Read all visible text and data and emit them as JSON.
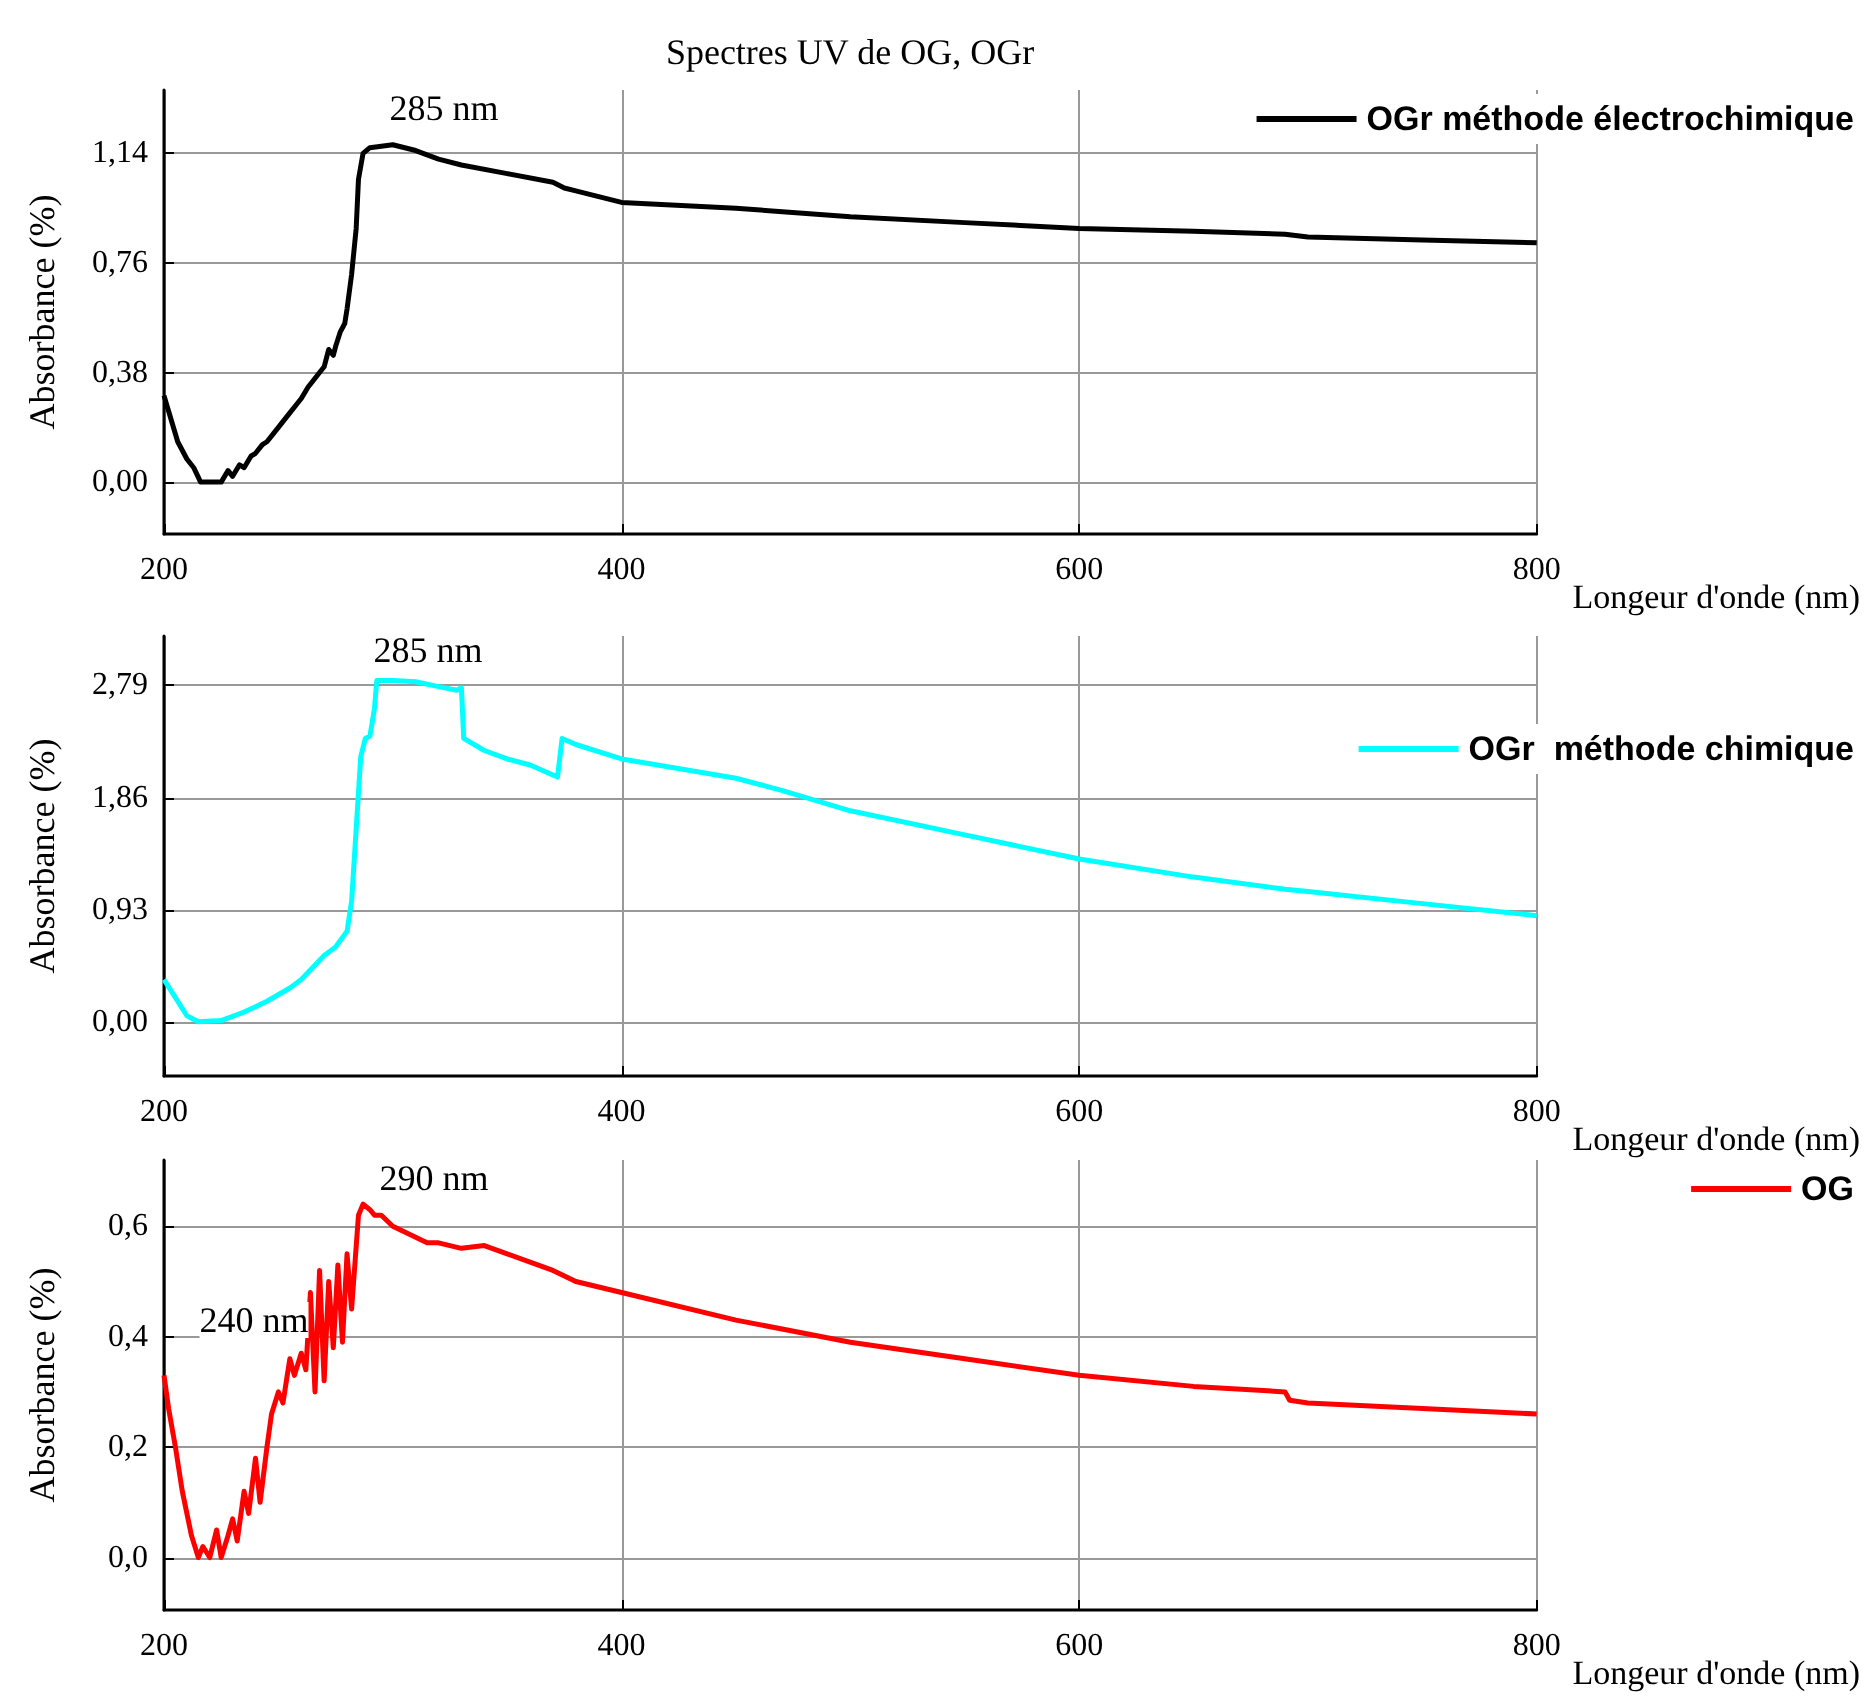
{
  "chart_data": [
    {
      "type": "line",
      "title": "Spectres UV de OG, OGr",
      "xlabel": "Longeur d'onde (nm)",
      "ylabel": "Absorbance (%)",
      "series": [
        {
          "name": "OGr méthode électrochimique",
          "color": "#000000",
          "x": [
            200,
            203,
            206,
            210,
            213,
            216,
            220,
            225,
            228,
            230,
            233,
            235,
            238,
            240,
            243,
            245,
            248,
            250,
            253,
            255,
            258,
            260,
            263,
            265,
            268,
            270,
            272,
            274,
            275,
            277,
            279,
            280,
            282,
            284,
            285,
            287,
            290,
            300,
            310,
            320,
            330,
            350,
            370,
            375,
            380,
            400,
            450,
            500,
            550,
            600,
            650,
            690,
            700,
            750,
            800
          ],
          "values": [
            0.3,
            0.22,
            0.14,
            0.08,
            0.05,
            0.0,
            0.0,
            0.0,
            0.04,
            0.02,
            0.06,
            0.05,
            0.09,
            0.1,
            0.13,
            0.14,
            0.17,
            0.19,
            0.22,
            0.24,
            0.27,
            0.29,
            0.33,
            0.35,
            0.38,
            0.4,
            0.46,
            0.44,
            0.47,
            0.52,
            0.55,
            0.6,
            0.72,
            0.88,
            1.05,
            1.14,
            1.16,
            1.17,
            1.15,
            1.12,
            1.1,
            1.07,
            1.04,
            1.02,
            1.01,
            0.97,
            0.95,
            0.92,
            0.9,
            0.88,
            0.87,
            0.86,
            0.85,
            0.84,
            0.83
          ]
        }
      ],
      "xlim": [
        200,
        800
      ],
      "xticks": [
        200,
        400,
        600,
        800
      ],
      "ylim": [
        -0.18,
        1.36
      ],
      "yticks": [
        {
          "value": 0,
          "label": "0,00"
        },
        {
          "value": 0.38,
          "label": "0,38"
        },
        {
          "value": 0.76,
          "label": "0,76"
        },
        {
          "value": 1.14,
          "label": "1,14"
        }
      ],
      "marker": "none",
      "grid": true,
      "legend": "top right",
      "annotations": [
        "285 nm"
      ]
    },
    {
      "type": "line",
      "xlabel": "Longeur d'onde (nm)",
      "ylabel": "Absorbance (%)",
      "series": [
        {
          "name": "OGr  méthode chimique",
          "color": "#00ffff",
          "x": [
            200,
            205,
            210,
            215,
            225,
            235,
            245,
            255,
            260,
            265,
            270,
            275,
            280,
            282,
            284,
            286,
            288,
            290,
            292,
            293,
            300,
            310,
            320,
            328,
            330,
            331,
            340,
            350,
            360,
            372,
            374,
            380,
            400,
            450,
            470,
            500,
            550,
            600,
            650,
            690,
            700,
            750,
            800
          ],
          "values": [
            0.35,
            0.2,
            0.05,
            0.0,
            0.01,
            0.08,
            0.17,
            0.28,
            0.35,
            0.45,
            0.55,
            0.62,
            0.75,
            1.0,
            1.6,
            2.2,
            2.35,
            2.37,
            2.6,
            2.83,
            2.83,
            2.82,
            2.78,
            2.75,
            2.77,
            2.35,
            2.25,
            2.18,
            2.13,
            2.03,
            2.35,
            2.3,
            2.18,
            2.02,
            1.92,
            1.75,
            1.55,
            1.35,
            1.2,
            1.1,
            1.08,
            0.98,
            0.88
          ]
        }
      ],
      "xlim": [
        200,
        800
      ],
      "xticks": [
        200,
        400,
        600,
        800
      ],
      "ylim": [
        -0.45,
        3.2
      ],
      "yticks": [
        {
          "value": 0,
          "label": "0,00"
        },
        {
          "value": 0.93,
          "label": "0,93"
        },
        {
          "value": 1.86,
          "label": "1,86"
        },
        {
          "value": 2.79,
          "label": "2,79"
        }
      ],
      "marker": "none",
      "grid": true,
      "legend": "right",
      "annotations": [
        "285 nm"
      ]
    },
    {
      "type": "line",
      "xlabel": "Longeur d'onde (nm)",
      "ylabel": "Absorbance (%)",
      "series": [
        {
          "name": "OG",
          "color": "#ff0000",
          "x": [
            200,
            202,
            205,
            208,
            210,
            212,
            215,
            217,
            220,
            223,
            225,
            228,
            230,
            232,
            235,
            237,
            240,
            242,
            245,
            247,
            250,
            252,
            255,
            257,
            260,
            262,
            264,
            266,
            268,
            270,
            272,
            274,
            276,
            278,
            280,
            282,
            285,
            287,
            290,
            292,
            295,
            300,
            310,
            315,
            320,
            330,
            340,
            350,
            370,
            380,
            400,
            450,
            500,
            550,
            600,
            650,
            690,
            692,
            700,
            750,
            800
          ],
          "values": [
            0.33,
            0.27,
            0.2,
            0.12,
            0.08,
            0.04,
            0.0,
            0.02,
            0.0,
            0.05,
            0.0,
            0.04,
            0.07,
            0.03,
            0.12,
            0.08,
            0.18,
            0.1,
            0.2,
            0.26,
            0.3,
            0.28,
            0.36,
            0.33,
            0.37,
            0.34,
            0.48,
            0.3,
            0.52,
            0.32,
            0.5,
            0.38,
            0.53,
            0.39,
            0.55,
            0.45,
            0.62,
            0.64,
            0.63,
            0.62,
            0.62,
            0.6,
            0.58,
            0.57,
            0.57,
            0.56,
            0.565,
            0.55,
            0.52,
            0.5,
            0.48,
            0.43,
            0.39,
            0.36,
            0.33,
            0.31,
            0.3,
            0.285,
            0.28,
            0.27,
            0.26
          ]
        }
      ],
      "xlim": [
        200,
        800
      ],
      "xticks": [
        200,
        400,
        600,
        800
      ],
      "ylim": [
        -0.095,
        0.72
      ],
      "yticks": [
        {
          "value": 0,
          "label": "0,0"
        },
        {
          "value": 0.2,
          "label": "0,2"
        },
        {
          "value": 0.4,
          "label": "0,4"
        },
        {
          "value": 0.6,
          "label": "0,6"
        }
      ],
      "marker": "none",
      "grid": true,
      "legend": "top right",
      "annotations": [
        "290 nm",
        "240 nm"
      ]
    }
  ]
}
